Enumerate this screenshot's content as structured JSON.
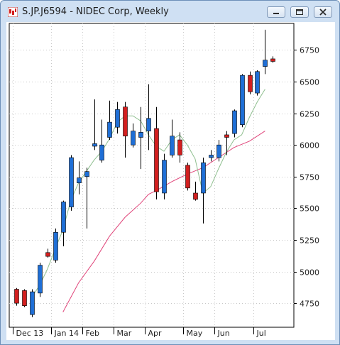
{
  "window": {
    "title": "S.JP.J6594 - NIDEC Corp, Weekly",
    "icon": "candlestick-app-icon",
    "buttons": [
      "minimize",
      "maximize",
      "close"
    ],
    "background": "#cfe0f3"
  },
  "chart_data": {
    "type": "candlestick",
    "title": "",
    "frequency": "weekly",
    "y_axis": {
      "position": "right",
      "min": 4560,
      "max": 6960,
      "ticks": [
        4750,
        5000,
        5250,
        5500,
        5750,
        6000,
        6250,
        6500,
        6750
      ]
    },
    "x_axis": {
      "ticks": [
        {
          "label": "Dec 13",
          "week": 0
        },
        {
          "label": "Jan 14",
          "week": 5
        },
        {
          "label": "Feb",
          "week": 9
        },
        {
          "label": "Mar",
          "week": 13
        },
        {
          "label": "Apr",
          "week": 17
        },
        {
          "label": "May",
          "week": 22
        },
        {
          "label": "Jun",
          "week": 26
        },
        {
          "label": "Jul",
          "week": 31
        }
      ]
    },
    "grid": true,
    "colors": {
      "up": "#1f6fd6",
      "down": "#d21f1f",
      "ma_fast": "#8fbf8f",
      "ma_slow": "#e0457a",
      "grid": "#c8c8c8"
    },
    "candles": [
      {
        "week": 0,
        "open": 4860,
        "high": 4870,
        "low": 4730,
        "close": 4750
      },
      {
        "week": 1,
        "open": 4850,
        "high": 4860,
        "low": 4720,
        "close": 4730
      },
      {
        "week": 2,
        "open": 4660,
        "high": 4860,
        "low": 4640,
        "close": 4840
      },
      {
        "week": 3,
        "open": 4830,
        "high": 5070,
        "low": 4800,
        "close": 5050
      },
      {
        "week": 4,
        "open": 5150,
        "high": 5180,
        "low": 5110,
        "close": 5120
      },
      {
        "week": 5,
        "open": 5090,
        "high": 5340,
        "low": 5070,
        "close": 5310
      },
      {
        "week": 6,
        "open": 5310,
        "high": 5560,
        "low": 5200,
        "close": 5550
      },
      {
        "week": 7,
        "open": 5510,
        "high": 5920,
        "low": 5480,
        "close": 5900
      },
      {
        "week": 8,
        "open": 5700,
        "high": 5870,
        "low": 5610,
        "close": 5740
      },
      {
        "week": 9,
        "open": 5750,
        "high": 5820,
        "low": 5340,
        "close": 5790
      },
      {
        "week": 10,
        "open": 5990,
        "high": 6360,
        "low": 5960,
        "close": 6010
      },
      {
        "week": 11,
        "open": 5880,
        "high": 6200,
        "low": 5860,
        "close": 6000
      },
      {
        "week": 12,
        "open": 6060,
        "high": 6350,
        "low": 6040,
        "close": 6180
      },
      {
        "week": 13,
        "open": 6140,
        "high": 6340,
        "low": 6090,
        "close": 6280
      },
      {
        "week": 14,
        "open": 6300,
        "high": 6340,
        "low": 5900,
        "close": 6070
      },
      {
        "week": 15,
        "open": 6000,
        "high": 6170,
        "low": 5980,
        "close": 6110
      },
      {
        "week": 16,
        "open": 6060,
        "high": 6300,
        "low": 5810,
        "close": 6100
      },
      {
        "week": 17,
        "open": 6110,
        "high": 6480,
        "low": 5960,
        "close": 6210
      },
      {
        "week": 18,
        "open": 6130,
        "high": 6300,
        "low": 5570,
        "close": 5630
      },
      {
        "week": 19,
        "open": 5620,
        "high": 5930,
        "low": 5570,
        "close": 5880
      },
      {
        "week": 20,
        "open": 5920,
        "high": 6200,
        "low": 5900,
        "close": 6070
      },
      {
        "week": 21,
        "open": 6040,
        "high": 6100,
        "low": 5860,
        "close": 5920
      },
      {
        "week": 22,
        "open": 5840,
        "high": 5860,
        "low": 5640,
        "close": 5660
      },
      {
        "week": 23,
        "open": 5620,
        "high": 5710,
        "low": 5560,
        "close": 5570
      },
      {
        "week": 24,
        "open": 5620,
        "high": 5900,
        "low": 5380,
        "close": 5860
      },
      {
        "week": 25,
        "open": 5900,
        "high": 5960,
        "low": 5870,
        "close": 5920
      },
      {
        "week": 26,
        "open": 5900,
        "high": 6040,
        "low": 5870,
        "close": 6000
      },
      {
        "week": 27,
        "open": 6080,
        "high": 6110,
        "low": 5920,
        "close": 6060
      },
      {
        "week": 28,
        "open": 6090,
        "high": 6280,
        "low": 6060,
        "close": 6270
      },
      {
        "week": 29,
        "open": 6160,
        "high": 6560,
        "low": 6140,
        "close": 6550
      },
      {
        "week": 30,
        "open": 6550,
        "high": 6580,
        "low": 6400,
        "close": 6420
      },
      {
        "week": 31,
        "open": 6410,
        "high": 6590,
        "low": 6390,
        "close": 6580
      },
      {
        "week": 32,
        "open": 6620,
        "high": 6910,
        "low": 6560,
        "close": 6670
      },
      {
        "week": 33,
        "open": 6680,
        "high": 6700,
        "low": 6650,
        "close": 6660
      }
    ],
    "ma_fast": [
      [
        2,
        4800
      ],
      [
        3,
        4890
      ],
      [
        4,
        5020
      ],
      [
        5,
        5180
      ],
      [
        6,
        5330
      ],
      [
        7,
        5560
      ],
      [
        8,
        5700
      ],
      [
        9,
        5790
      ],
      [
        10,
        5880
      ],
      [
        11,
        5950
      ],
      [
        12,
        6050
      ],
      [
        13,
        6180
      ],
      [
        14,
        6230
      ],
      [
        15,
        6230
      ],
      [
        16,
        6190
      ],
      [
        17,
        6080
      ],
      [
        18,
        5990
      ],
      [
        19,
        5950
      ],
      [
        20,
        6040
      ],
      [
        21,
        6080
      ],
      [
        22,
        6000
      ],
      [
        23,
        5890
      ],
      [
        24,
        5620
      ],
      [
        25,
        5670
      ],
      [
        26,
        5810
      ],
      [
        27,
        5940
      ],
      [
        28,
        6040
      ],
      [
        29,
        6080
      ],
      [
        30,
        6220
      ],
      [
        31,
        6340
      ],
      [
        32,
        6440
      ]
    ],
    "ma_slow": [
      [
        6,
        4680
      ],
      [
        8,
        4910
      ],
      [
        10,
        5080
      ],
      [
        12,
        5280
      ],
      [
        14,
        5430
      ],
      [
        16,
        5540
      ],
      [
        17,
        5610
      ],
      [
        18,
        5640
      ],
      [
        20,
        5710
      ],
      [
        22,
        5770
      ],
      [
        24,
        5820
      ],
      [
        26,
        5900
      ],
      [
        28,
        5980
      ],
      [
        30,
        6030
      ],
      [
        32,
        6110
      ]
    ]
  }
}
